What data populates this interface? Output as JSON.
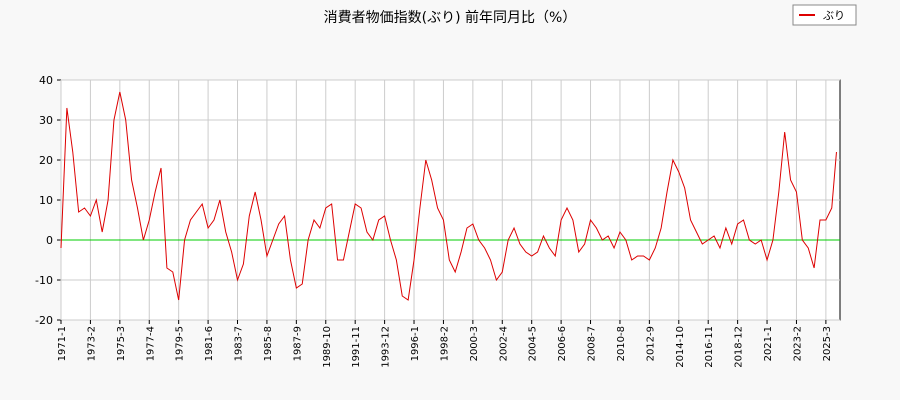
{
  "chart_data": {
    "type": "line",
    "title": "消費者物価指数(ぶり) 前年同月比（%）",
    "x": [
      "1971-1",
      "1971-6",
      "1971-11",
      "1972-4",
      "1972-9",
      "1973-2",
      "1973-7",
      "1973-12",
      "1974-5",
      "1974-10",
      "1975-3",
      "1975-8",
      "1976-1",
      "1976-6",
      "1976-11",
      "1977-4",
      "1977-9",
      "1978-2",
      "1978-7",
      "1978-12",
      "1979-5",
      "1979-10",
      "1980-3",
      "1980-8",
      "1981-1",
      "1981-6",
      "1981-11",
      "1982-4",
      "1982-9",
      "1983-2",
      "1983-7",
      "1983-12",
      "1984-5",
      "1984-10",
      "1985-3",
      "1985-8",
      "1986-1",
      "1986-6",
      "1986-11",
      "1987-4",
      "1987-9",
      "1988-2",
      "1988-7",
      "1988-12",
      "1989-5",
      "1989-10",
      "1990-3",
      "1990-8",
      "1991-1",
      "1991-6",
      "1991-11",
      "1992-4",
      "1992-9",
      "1993-2",
      "1993-7",
      "1993-12",
      "1994-5",
      "1994-10",
      "1995-3",
      "1995-8",
      "1996-1",
      "1996-6",
      "1996-11",
      "1997-4",
      "1997-9",
      "1998-2",
      "1998-7",
      "1998-12",
      "1999-5",
      "1999-10",
      "2000-3",
      "2000-8",
      "2001-1",
      "2001-6",
      "2001-11",
      "2002-4",
      "2002-9",
      "2003-2",
      "2003-7",
      "2003-12",
      "2004-5",
      "2004-10",
      "2005-3",
      "2005-8",
      "2006-1",
      "2006-6",
      "2006-11",
      "2007-4",
      "2007-9",
      "2008-2",
      "2008-7",
      "2008-12",
      "2009-5",
      "2009-10",
      "2010-3",
      "2010-8",
      "2011-1",
      "2011-6",
      "2011-11",
      "2012-4",
      "2012-9",
      "2013-2",
      "2013-7",
      "2013-12",
      "2014-5",
      "2014-10",
      "2015-3",
      "2015-8",
      "2016-1",
      "2016-6",
      "2016-11",
      "2017-4",
      "2017-9",
      "2018-2",
      "2018-7",
      "2018-12",
      "2019-5",
      "2019-10",
      "2020-3",
      "2020-8",
      "2021-1",
      "2021-6",
      "2021-11",
      "2022-4",
      "2022-9",
      "2023-2",
      "2023-7",
      "2023-12",
      "2024-5",
      "2024-10",
      "2025-3",
      "2025-8",
      "2025-12"
    ],
    "series": [
      {
        "name": "ぶり",
        "color": "#dd0000",
        "values": [
          -2,
          33,
          22,
          7,
          8,
          6,
          10,
          2,
          10,
          30,
          37,
          30,
          15,
          8,
          0,
          5,
          12,
          18,
          -7,
          -8,
          -15,
          0,
          5,
          7,
          9,
          3,
          5,
          10,
          2,
          -3,
          -10,
          -6,
          6,
          12,
          5,
          -4,
          0,
          4,
          6,
          -5,
          -12,
          -11,
          0,
          5,
          3,
          8,
          9,
          -5,
          -5,
          2,
          9,
          8,
          2,
          0,
          5,
          6,
          0,
          -5,
          -14,
          -15,
          -5,
          8,
          20,
          15,
          8,
          5,
          -5,
          -8,
          -3,
          3,
          4,
          0,
          -2,
          -5,
          -10,
          -8,
          0,
          3,
          -1,
          -3,
          -4,
          -3,
          1,
          -2,
          -4,
          5,
          8,
          5,
          -3,
          -1,
          5,
          3,
          0,
          1,
          -2,
          2,
          0,
          -5,
          -4,
          -4,
          -5,
          -2,
          3,
          12,
          20,
          17,
          13,
          5,
          2,
          -1,
          0,
          1,
          -2,
          3,
          -1,
          4,
          5,
          0,
          -1,
          0,
          -5,
          0,
          12,
          27,
          15,
          12,
          0,
          -2,
          -7,
          5,
          5,
          8,
          22
        ]
      }
    ],
    "xlim": [
      "1971-1",
      "2026-3"
    ],
    "xticks": [
      "1971-1",
      "1973-2",
      "1975-3",
      "1977-4",
      "1979-5",
      "1981-6",
      "1983-7",
      "1985-8",
      "1987-9",
      "1989-10",
      "1991-11",
      "1993-12",
      "1996-1",
      "1998-2",
      "2000-3",
      "2002-4",
      "2004-5",
      "2006-6",
      "2008-7",
      "2010-8",
      "2012-9",
      "2014-10",
      "2016-11",
      "2018-12",
      "2021-1",
      "2023-2",
      "2025-3"
    ],
    "ylim": [
      -20,
      40
    ],
    "yticks": [
      -20,
      -10,
      0,
      10,
      20,
      30,
      40
    ],
    "grid": true,
    "zero_line_color": "#00cc00",
    "legend": "top-right"
  }
}
